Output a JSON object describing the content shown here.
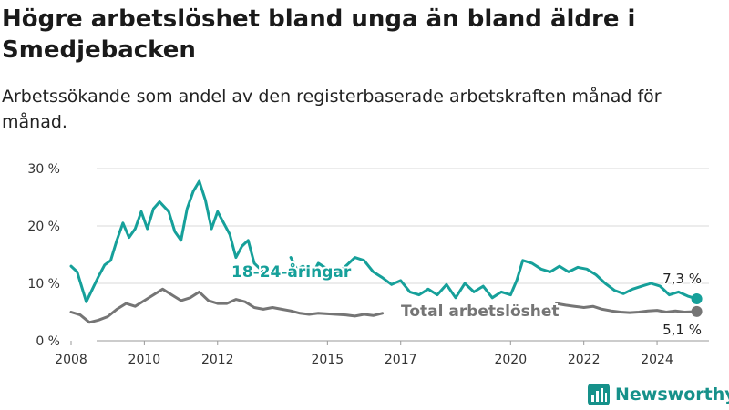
{
  "title": "Högre arbetslöshet bland unga än bland äldre i Smedjebacken",
  "subtitle": "Arbetssökande som andel av den registerbaserade arbetskraften månad för månad.",
  "brand": {
    "name": "Newsworthy",
    "icon": "bar-chart-logo-icon"
  },
  "colors": {
    "youth": "#16a09a",
    "total": "#757575",
    "grid": "#d9d9d9",
    "brand": "#16918a"
  },
  "chart_data": {
    "type": "line",
    "title": "Högre arbetslöshet bland unga än bland äldre i Smedjebacken",
    "subtitle": "Arbetssökande som andel av den registerbaserade arbetskraften månad för månad.",
    "xlabel": "",
    "ylabel": "",
    "xlim": [
      "2008-01-01",
      "2025-06-01"
    ],
    "ylim": [
      0,
      30
    ],
    "yticks": [
      0,
      10,
      20,
      30
    ],
    "ytick_labels": [
      "0 %",
      "10 %",
      "20 %",
      "30 %"
    ],
    "xticks": [
      2008,
      2010,
      2012,
      2015,
      2017,
      2020,
      2022,
      2024
    ],
    "grid": true,
    "legend": "inline labels",
    "series": [
      {
        "name": "18-24-åringar",
        "color": "#16a09a",
        "end_label": "7,3 %",
        "points": [
          [
            "2008-01-01",
            13.0
          ],
          [
            "2008-03-01",
            12.0
          ],
          [
            "2008-05-01",
            8.5
          ],
          [
            "2008-06-01",
            6.8
          ],
          [
            "2008-08-01",
            9.0
          ],
          [
            "2008-10-01",
            11.2
          ],
          [
            "2008-12-01",
            13.2
          ],
          [
            "2009-02-01",
            14.0
          ],
          [
            "2009-04-01",
            17.5
          ],
          [
            "2009-06-01",
            20.5
          ],
          [
            "2009-08-01",
            18.0
          ],
          [
            "2009-10-01",
            19.5
          ],
          [
            "2009-12-01",
            22.5
          ],
          [
            "2010-02-01",
            19.5
          ],
          [
            "2010-04-01",
            23.0
          ],
          [
            "2010-06-01",
            24.2
          ],
          [
            "2010-09-01",
            22.5
          ],
          [
            "2010-11-01",
            19.0
          ],
          [
            "2011-01-01",
            17.5
          ],
          [
            "2011-03-01",
            23.0
          ],
          [
            "2011-05-01",
            26.0
          ],
          [
            "2011-07-01",
            27.8
          ],
          [
            "2011-09-01",
            24.5
          ],
          [
            "2011-11-01",
            19.5
          ],
          [
            "2012-01-01",
            22.5
          ],
          [
            "2012-03-01",
            20.5
          ],
          [
            "2012-05-01",
            18.5
          ],
          [
            "2012-07-01",
            14.5
          ],
          [
            "2012-09-01",
            16.5
          ],
          [
            "2012-11-01",
            17.5
          ],
          [
            "2013-01-01",
            13.5
          ],
          [
            "2013-04-01",
            12.0
          ]
        ],
        "points_after_label": [
          [
            "2014-01-01",
            14.5
          ],
          [
            "2014-03-01",
            12.5
          ],
          [
            "2014-05-01",
            13.0
          ],
          [
            "2014-08-01",
            11.5
          ],
          [
            "2014-10-01",
            13.5
          ],
          [
            "2015-01-01",
            12.5
          ],
          [
            "2015-04-01",
            11.5
          ],
          [
            "2015-07-01",
            13.0
          ],
          [
            "2015-10-01",
            14.5
          ],
          [
            "2016-01-01",
            14.0
          ],
          [
            "2016-04-01",
            12.0
          ],
          [
            "2016-07-01",
            11.0
          ],
          [
            "2016-10-01",
            9.8
          ],
          [
            "2017-01-01",
            10.5
          ],
          [
            "2017-04-01",
            8.5
          ],
          [
            "2017-07-01",
            8.0
          ],
          [
            "2017-10-01",
            9.0
          ],
          [
            "2018-01-01",
            8.0
          ],
          [
            "2018-04-01",
            9.8
          ],
          [
            "2018-07-01",
            7.5
          ],
          [
            "2018-10-01",
            10.0
          ],
          [
            "2019-01-01",
            8.5
          ],
          [
            "2019-04-01",
            9.5
          ],
          [
            "2019-07-01",
            7.5
          ],
          [
            "2019-10-01",
            8.5
          ],
          [
            "2020-01-01",
            8.0
          ],
          [
            "2020-03-01",
            10.5
          ],
          [
            "2020-05-01",
            14.0
          ],
          [
            "2020-08-01",
            13.5
          ],
          [
            "2020-11-01",
            12.5
          ],
          [
            "2021-02-01",
            12.0
          ],
          [
            "2021-05-01",
            13.0
          ],
          [
            "2021-08-01",
            12.0
          ],
          [
            "2021-11-01",
            12.8
          ],
          [
            "2022-02-01",
            12.5
          ],
          [
            "2022-05-01",
            11.5
          ],
          [
            "2022-08-01",
            10.0
          ],
          [
            "2022-11-01",
            8.8
          ],
          [
            "2023-02-01",
            8.2
          ],
          [
            "2023-05-01",
            9.0
          ],
          [
            "2023-08-01",
            9.5
          ],
          [
            "2023-11-01",
            10.0
          ],
          [
            "2024-02-01",
            9.5
          ],
          [
            "2024-05-01",
            8.0
          ],
          [
            "2024-08-01",
            8.5
          ],
          [
            "2024-11-01",
            7.8
          ],
          [
            "2025-02-01",
            7.3
          ]
        ]
      },
      {
        "name": "Total arbetslöshet",
        "color": "#757575",
        "end_label": "5,1 %",
        "points": [
          [
            "2008-01-01",
            5.0
          ],
          [
            "2008-04-01",
            4.5
          ],
          [
            "2008-07-01",
            3.2
          ],
          [
            "2008-10-01",
            3.6
          ],
          [
            "2009-01-01",
            4.2
          ],
          [
            "2009-04-01",
            5.5
          ],
          [
            "2009-07-01",
            6.5
          ],
          [
            "2009-10-01",
            6.0
          ],
          [
            "2010-01-01",
            7.0
          ],
          [
            "2010-04-01",
            8.0
          ],
          [
            "2010-07-01",
            9.0
          ],
          [
            "2010-10-01",
            8.0
          ],
          [
            "2011-01-01",
            7.0
          ],
          [
            "2011-04-01",
            7.5
          ],
          [
            "2011-07-01",
            8.5
          ],
          [
            "2011-10-01",
            7.0
          ],
          [
            "2012-01-01",
            6.5
          ],
          [
            "2012-04-01",
            6.5
          ],
          [
            "2012-07-01",
            7.2
          ],
          [
            "2012-10-01",
            6.8
          ],
          [
            "2013-01-01",
            5.8
          ],
          [
            "2013-04-01",
            5.5
          ],
          [
            "2013-07-01",
            5.8
          ],
          [
            "2013-10-01",
            5.5
          ],
          [
            "2014-01-01",
            5.2
          ],
          [
            "2014-04-01",
            4.8
          ],
          [
            "2014-07-01",
            4.6
          ],
          [
            "2014-10-01",
            4.8
          ],
          [
            "2015-01-01",
            4.7
          ],
          [
            "2015-04-01",
            4.6
          ],
          [
            "2015-07-01",
            4.5
          ],
          [
            "2015-10-01",
            4.3
          ],
          [
            "2016-01-01",
            4.6
          ],
          [
            "2016-04-01",
            4.4
          ],
          [
            "2016-07-01",
            4.8
          ]
        ],
        "points_after_label": [
          [
            "2021-04-01",
            6.5
          ],
          [
            "2021-07-01",
            6.2
          ],
          [
            "2021-10-01",
            6.0
          ],
          [
            "2022-01-01",
            5.8
          ],
          [
            "2022-04-01",
            6.0
          ],
          [
            "2022-07-01",
            5.5
          ],
          [
            "2022-10-01",
            5.2
          ],
          [
            "2023-01-01",
            5.0
          ],
          [
            "2023-04-01",
            4.9
          ],
          [
            "2023-07-01",
            5.0
          ],
          [
            "2023-10-01",
            5.2
          ],
          [
            "2024-01-01",
            5.3
          ],
          [
            "2024-04-01",
            5.0
          ],
          [
            "2024-07-01",
            5.2
          ],
          [
            "2024-10-01",
            5.0
          ],
          [
            "2025-02-01",
            5.1
          ]
        ]
      }
    ]
  }
}
